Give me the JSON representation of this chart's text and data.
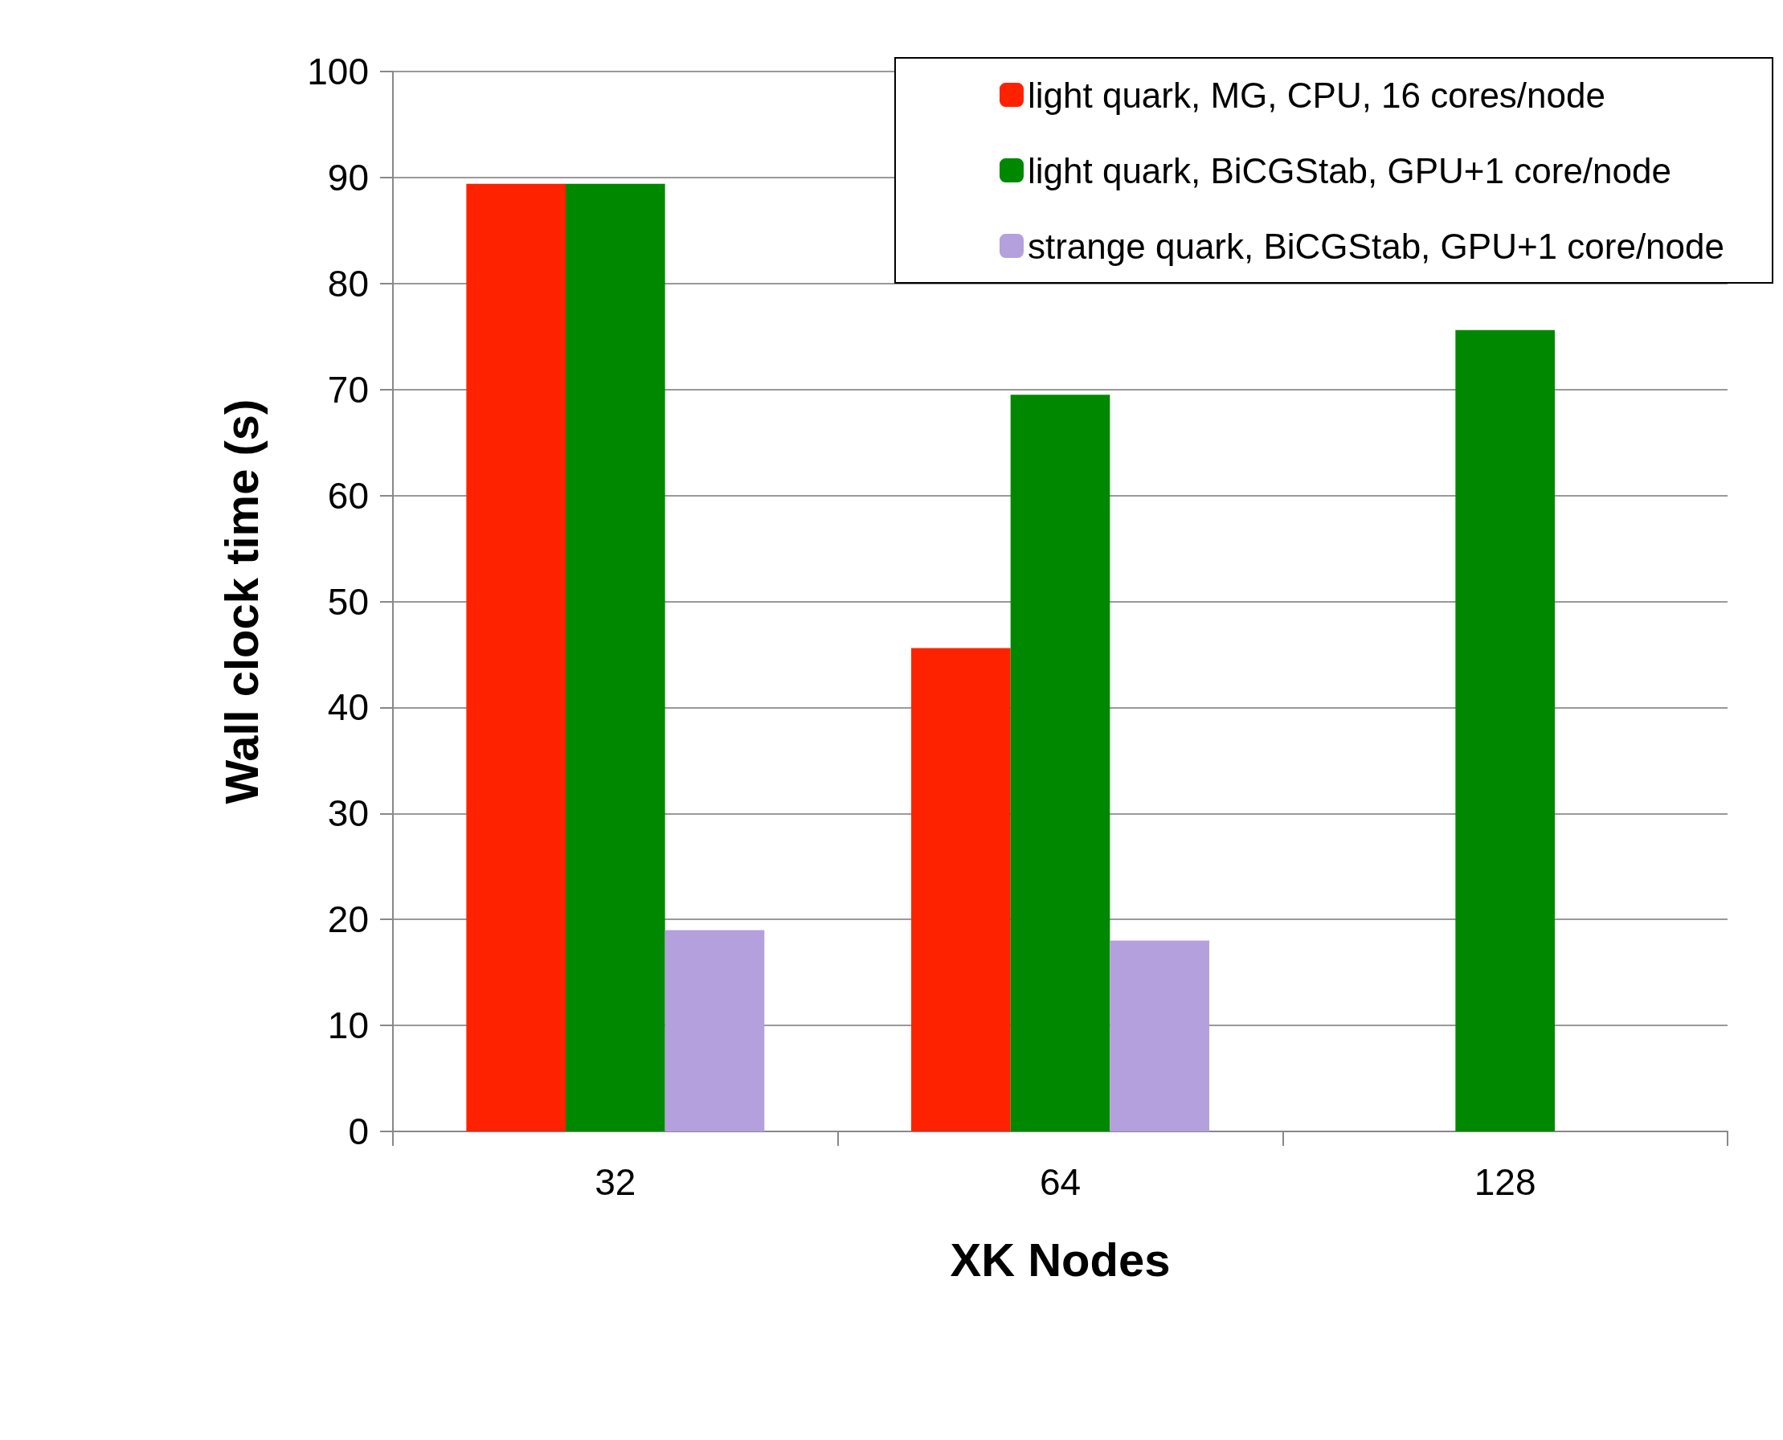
{
  "chart_data": {
    "type": "bar",
    "xlabel": "XK Nodes",
    "ylabel": "Wall clock time (s)",
    "categories": [
      "32",
      "64",
      "128"
    ],
    "series": [
      {
        "name": "light quark, MG, CPU, 16 cores/node",
        "color": "#ff2200",
        "values": [
          89.4,
          45.6,
          null
        ]
      },
      {
        "name": "light quark, BiCGStab, GPU+1 core/node",
        "color": "#008800",
        "values": [
          89.4,
          69.5,
          75.6
        ]
      },
      {
        "name": "strange quark, BiCGStab, GPU+1 core/node",
        "color": "#b4a0dc",
        "values": [
          19.0,
          18.0,
          null
        ]
      }
    ],
    "ylim": [
      0,
      100
    ],
    "yticks": [
      0,
      10,
      20,
      30,
      40,
      50,
      60,
      70,
      80,
      90,
      100
    ],
    "grid": "y",
    "legend": "top right"
  }
}
